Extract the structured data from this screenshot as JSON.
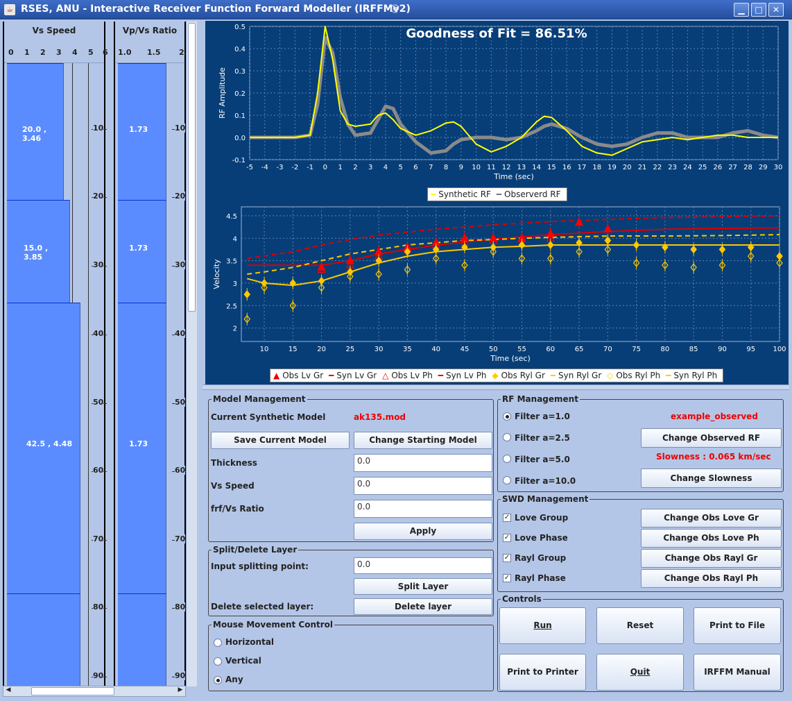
{
  "window": {
    "title": "RSES, ANU - Interactive Receiver Function Forward Modeller (IRFFMv2)",
    "minimize": "▁",
    "maximize": "□",
    "close": "✕"
  },
  "vs_column": {
    "title": "Vs Speed",
    "axis": [
      "0",
      "1",
      "2",
      "3",
      "4",
      "5",
      "6"
    ]
  },
  "ratio_column": {
    "title": "Vp/Vs Ratio",
    "axis": [
      "1.0",
      "1.5",
      "2."
    ]
  },
  "depth_labels": [
    "10",
    "20",
    "30",
    "40",
    "50",
    "60",
    "70",
    "80",
    "90"
  ],
  "layers": [
    {
      "vs": 3.46,
      "thickness": 20.0,
      "label": "20.0 , 3.46",
      "ratio_label": "1.73"
    },
    {
      "vs": 3.85,
      "thickness": 15.0,
      "label": "15.0 , 3.85",
      "ratio_label": "1.73"
    },
    {
      "vs": 4.48,
      "thickness": 42.5,
      "label": "42.5 , 4.48",
      "ratio_label": "1.73"
    },
    {
      "vs": 4.48,
      "thickness": 15.0,
      "label": "",
      "ratio_label": ""
    }
  ],
  "rf_chart": {
    "title": "Goodness of Fit = 86.51%",
    "xlabel": "Time (sec)",
    "ylabel": "RF Amplitude",
    "xticks": [
      "-5",
      "-4",
      "-3",
      "-2",
      "-1",
      "0",
      "1",
      "2",
      "3",
      "4",
      "5",
      "6",
      "7",
      "8",
      "9",
      "10",
      "11",
      "12",
      "13",
      "14",
      "15",
      "16",
      "17",
      "18",
      "19",
      "20",
      "21",
      "22",
      "23",
      "24",
      "25",
      "26",
      "27",
      "28",
      "29",
      "30"
    ],
    "yticks": [
      "-0.1",
      "0.0",
      "0.1",
      "0.2",
      "0.3",
      "0.4",
      "0.5"
    ],
    "legend": [
      "Synthetic RF",
      "Observerd RF"
    ]
  },
  "swd_chart": {
    "xlabel": "Time (sec)",
    "ylabel": "Velocity",
    "xticks": [
      "10",
      "15",
      "20",
      "25",
      "30",
      "35",
      "40",
      "45",
      "50",
      "55",
      "60",
      "65",
      "70",
      "75",
      "80",
      "85",
      "90",
      "95",
      "100"
    ],
    "yticks": [
      "2",
      "2.5",
      "3",
      "3.5",
      "4",
      "4.5"
    ],
    "legend": [
      "Obs Lv Gr",
      "Syn Lv Gr",
      "Obs Lv Ph",
      "Syn Lv Ph",
      "Obs Ryl Gr",
      "Syn Ryl Gr",
      "Obs Ryl Ph",
      "Syn Ryl Ph"
    ]
  },
  "chart_data": [
    {
      "type": "line",
      "title": "Goodness of Fit = 86.51%",
      "xlabel": "Time (sec)",
      "ylabel": "RF Amplitude",
      "xlim": [
        -5,
        30
      ],
      "ylim": [
        -0.1,
        0.5
      ],
      "series": [
        {
          "name": "Synthetic RF",
          "color": "#ffff00",
          "x": [
            -5,
            -2,
            -1,
            -0.5,
            0,
            0.5,
            1,
            1.5,
            2,
            3,
            3.5,
            4,
            4.5,
            5,
            6,
            7,
            8,
            8.5,
            9,
            10,
            11,
            12,
            13,
            14,
            14.5,
            15,
            16,
            17,
            18,
            19,
            20,
            21,
            22,
            23,
            24,
            25,
            26,
            27,
            28,
            29,
            30
          ],
          "y": [
            0,
            0,
            0.01,
            0.2,
            0.5,
            0.35,
            0.12,
            0.06,
            0.05,
            0.06,
            0.1,
            0.11,
            0.08,
            0.04,
            0.01,
            0.03,
            0.065,
            0.07,
            0.05,
            -0.03,
            -0.065,
            -0.04,
            0,
            0.07,
            0.095,
            0.09,
            0.03,
            -0.04,
            -0.07,
            -0.08,
            -0.05,
            -0.02,
            -0.01,
            0,
            -0.01,
            0,
            0.01,
            0.01,
            0,
            0,
            0
          ]
        },
        {
          "name": "Observerd RF",
          "color": "#8a8a8a",
          "x": [
            -5,
            -2,
            -1,
            -0.5,
            0,
            0.5,
            1,
            1.5,
            2,
            3,
            3.5,
            4,
            4.5,
            5,
            6,
            7,
            8,
            8.5,
            9,
            10,
            11,
            12,
            13,
            14,
            14.5,
            15,
            16,
            17,
            18,
            19,
            20,
            21,
            22,
            23,
            24,
            25,
            26,
            27,
            28,
            29,
            30
          ],
          "y": [
            0,
            0,
            0.01,
            0.15,
            0.45,
            0.38,
            0.18,
            0.06,
            0.01,
            0.02,
            0.08,
            0.14,
            0.13,
            0.06,
            -0.02,
            -0.07,
            -0.06,
            -0.03,
            -0.01,
            0,
            0,
            -0.01,
            0,
            0.03,
            0.05,
            0.06,
            0.04,
            0,
            -0.03,
            -0.04,
            -0.03,
            0,
            0.02,
            0.02,
            0,
            0,
            0,
            0.02,
            0.03,
            0.01,
            0
          ]
        }
      ]
    },
    {
      "type": "scatter",
      "xlabel": "Time (sec)",
      "ylabel": "Velocity",
      "xlim": [
        6,
        100
      ],
      "ylim": [
        1.7,
        4.7
      ],
      "x": [
        7,
        10,
        15,
        20,
        25,
        30,
        35,
        40,
        45,
        50,
        55,
        60,
        65,
        70,
        75,
        80,
        85,
        90,
        95,
        100
      ],
      "series": [
        {
          "name": "Obs Lv Gr",
          "marker": "triangle-filled",
          "color": "#ff0000",
          "x": [
            20,
            25,
            30,
            35,
            40,
            45,
            50,
            55,
            60,
            65,
            70
          ],
          "y": [
            3.35,
            3.5,
            3.7,
            3.8,
            3.9,
            4.0,
            4.0,
            4.0,
            4.1,
            4.35,
            4.2
          ]
        },
        {
          "name": "Syn Lv Gr",
          "line": "solid",
          "color": "#dd0000",
          "x": [
            7,
            15,
            20,
            25,
            30,
            40,
            50,
            60,
            70,
            80,
            90,
            100
          ],
          "y": [
            3.4,
            3.4,
            3.4,
            3.5,
            3.65,
            3.85,
            3.98,
            4.08,
            4.15,
            4.2,
            4.22,
            4.23
          ]
        },
        {
          "name": "Obs Lv Ph",
          "marker": "triangle-open",
          "color": "#ff0000",
          "x": [
            20,
            25,
            30,
            35,
            40,
            45,
            50,
            55,
            60
          ],
          "y": [
            3.3,
            3.4,
            3.6,
            3.75,
            3.85,
            3.9,
            3.95,
            3.98,
            4.0
          ]
        },
        {
          "name": "Syn Lv Ph",
          "line": "dashed",
          "color": "#dd0000",
          "x": [
            7,
            15,
            20,
            25,
            30,
            40,
            50,
            60,
            70,
            80,
            90,
            100
          ],
          "y": [
            3.55,
            3.7,
            3.85,
            3.97,
            4.07,
            4.2,
            4.3,
            4.37,
            4.42,
            4.46,
            4.48,
            4.5
          ]
        },
        {
          "name": "Obs Ryl Gr",
          "marker": "diamond-filled",
          "color": "#ffc800",
          "x": [
            7,
            10,
            15,
            20,
            25,
            30,
            35,
            40,
            45,
            50,
            55,
            60,
            65,
            70,
            75,
            80,
            85,
            90,
            95,
            100
          ],
          "y": [
            2.75,
            3.0,
            3.0,
            3.05,
            3.25,
            3.5,
            3.7,
            3.75,
            3.8,
            3.8,
            3.85,
            3.85,
            3.9,
            3.95,
            3.85,
            3.8,
            3.75,
            3.75,
            3.8,
            3.6
          ]
        },
        {
          "name": "Syn Ryl Gr",
          "line": "solid",
          "color": "#ffc800",
          "x": [
            7,
            10,
            15,
            20,
            25,
            30,
            35,
            40,
            45,
            50,
            55,
            60,
            70,
            80,
            90,
            100
          ],
          "y": [
            3.1,
            3.0,
            2.95,
            3.05,
            3.25,
            3.45,
            3.6,
            3.7,
            3.75,
            3.8,
            3.82,
            3.85,
            3.85,
            3.85,
            3.85,
            3.85
          ]
        },
        {
          "name": "Obs Ryl Ph",
          "marker": "diamond-open",
          "color": "#ffc800",
          "x": [
            7,
            10,
            15,
            20,
            25,
            30,
            35,
            40,
            45,
            50,
            55,
            60,
            65,
            70,
            75,
            80,
            85,
            90,
            95,
            100
          ],
          "y": [
            2.2,
            2.9,
            2.5,
            2.9,
            3.15,
            3.2,
            3.3,
            3.55,
            3.4,
            3.7,
            3.55,
            3.55,
            3.7,
            3.75,
            3.45,
            3.4,
            3.35,
            3.4,
            3.6,
            3.45
          ]
        },
        {
          "name": "Syn Ryl Ph",
          "line": "dashed",
          "color": "#ffc800",
          "x": [
            7,
            10,
            15,
            20,
            25,
            30,
            35,
            40,
            45,
            50,
            55,
            60,
            70,
            80,
            90,
            100
          ],
          "y": [
            3.2,
            3.25,
            3.35,
            3.5,
            3.65,
            3.75,
            3.85,
            3.9,
            3.95,
            3.97,
            4.0,
            4.02,
            4.05,
            4.05,
            4.06,
            4.08
          ]
        }
      ]
    }
  ],
  "model_management": {
    "title": "Model Management",
    "current_label": "Current Synthetic Model",
    "current_value": "ak135.mod",
    "save_btn": "Save Current Model",
    "change_btn": "Change Starting Model",
    "thickness_label": "Thickness",
    "thickness_value": "0.0",
    "vs_label": "Vs Speed",
    "vs_value": "0.0",
    "ratio_label": "frf/Vs Ratio",
    "ratio_value": "0.0",
    "apply_btn": "Apply"
  },
  "split": {
    "title": "Split/Delete Layer",
    "input_label": "Input splitting point:",
    "input_value": "0.0",
    "split_btn": "Split Layer",
    "delete_label": "Delete selected layer:",
    "delete_btn": "Delete layer"
  },
  "mouse": {
    "title": "Mouse Movement Control",
    "options": [
      "Horizontal",
      "Vertical",
      "Any"
    ]
  },
  "rf_management": {
    "title": "RF Management",
    "filters": [
      "Filter a=1.0",
      "Filter a=2.5",
      "Filter a=5.0",
      "Filter a=10.0"
    ],
    "observed_name": "example_observed",
    "change_rf_btn": "Change Observed RF",
    "slowness": "Slowness : 0.065 km/sec",
    "change_slow_btn": "Change Slowness"
  },
  "swd_management": {
    "title": "SWD Management",
    "checks": [
      "Love Group",
      "Love Phase",
      "Rayl Group",
      "Rayl Phase"
    ],
    "buttons": [
      "Change Obs Love Gr",
      "Change Obs Love Ph",
      "Change Obs Rayl Gr",
      "Change Obs Rayl Ph"
    ]
  },
  "controls": {
    "title": "Controls",
    "run": "Run",
    "reset": "Reset",
    "print_file": "Print to File",
    "print_printer": "Print to Printer",
    "quit": "Quit",
    "manual": "IRFFM Manual"
  }
}
